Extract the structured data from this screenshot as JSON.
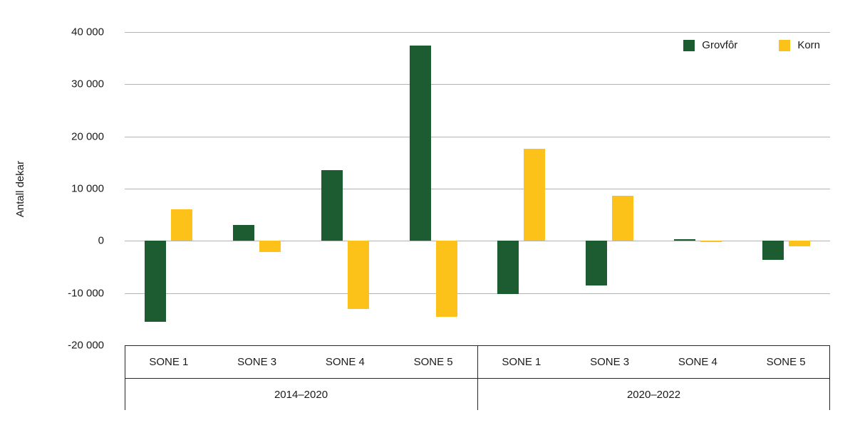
{
  "chart_data": {
    "type": "bar",
    "title": "",
    "ylabel": "Antall dekar",
    "xlabel": "",
    "ylim": [
      -20000,
      40000
    ],
    "ytick_step": 10000,
    "yticks": [
      "40 000",
      "30 000",
      "20 000",
      "10 000",
      "0",
      "-10 000",
      "-20 000"
    ],
    "grid": "horizontal",
    "legend_position": "top-right",
    "groups": [
      {
        "label": "2014–2020",
        "categories": [
          "SONE 1",
          "SONE 3",
          "SONE 4",
          "SONE 5"
        ]
      },
      {
        "label": "2020–2022",
        "categories": [
          "SONE 1",
          "SONE 3",
          "SONE 4",
          "SONE 5"
        ]
      }
    ],
    "series": [
      {
        "name": "Grovfôr",
        "color": "#1d5c31",
        "values": [
          -15500,
          3100,
          13500,
          37400,
          -10200,
          -8500,
          300,
          -3700
        ]
      },
      {
        "name": "Korn",
        "color": "#fcc219",
        "values": [
          6100,
          -2100,
          -13100,
          -14500,
          17700,
          8600,
          -200,
          -1000
        ]
      }
    ]
  }
}
